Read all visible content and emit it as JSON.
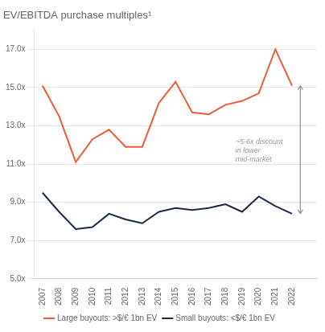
{
  "chart_data": {
    "type": "line",
    "title": "EV/EBITDA purchase multiples¹",
    "x": [
      2007,
      2008,
      2009,
      2010,
      2011,
      2012,
      2013,
      2014,
      2015,
      2016,
      2017,
      2018,
      2019,
      2020,
      2021,
      2022
    ],
    "series": [
      {
        "name": "Large buyouts: >$/€ 1bn EV",
        "color": "#F05A35",
        "values": [
          15.1,
          13.5,
          11.1,
          12.3,
          12.8,
          11.9,
          11.9,
          14.2,
          15.3,
          13.7,
          13.6,
          14.1,
          14.3,
          14.7,
          17.0,
          15.1
        ]
      },
      {
        "name": "Small buyouts: <$/€ 1bn EV",
        "color": "#1B2A4A",
        "values": [
          9.5,
          8.5,
          7.6,
          7.7,
          8.4,
          8.1,
          7.9,
          8.5,
          8.7,
          8.6,
          8.7,
          8.9,
          8.5,
          9.3,
          8.8,
          8.4
        ]
      }
    ],
    "xlim": [
      2006.5,
      2023.5
    ],
    "xticks": [
      2007,
      2008,
      2009,
      2010,
      2011,
      2012,
      2013,
      2014,
      2015,
      2016,
      2017,
      2018,
      2019,
      2020,
      2021,
      2022
    ],
    "ylim": [
      5.0,
      18.0
    ],
    "yticks": [
      {
        "value": 5.0,
        "label": "5.0x"
      },
      {
        "value": 7.0,
        "label": "7.0x"
      },
      {
        "value": 9.0,
        "label": "9.0x"
      },
      {
        "value": 11.0,
        "label": "11.0x"
      },
      {
        "value": 13.0,
        "label": "13.0x"
      },
      {
        "value": 15.0,
        "label": "15.0x"
      },
      {
        "value": 17.0,
        "label": "17.0x"
      }
    ],
    "grid": "y",
    "legend": "bottom",
    "annotations": [
      {
        "text": "~5-6x discount\nin lower\nmid-market",
        "x": 2018.6,
        "y": 11.7,
        "arrow": {
          "x": 2022.5,
          "y": [
            8.4,
            15.1
          ]
        }
      }
    ]
  }
}
